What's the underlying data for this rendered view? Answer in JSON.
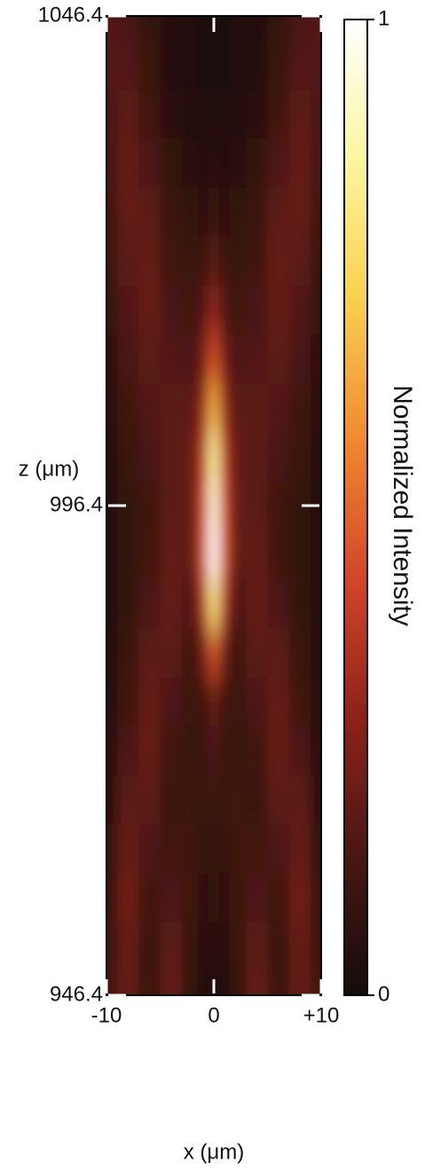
{
  "chart_data": {
    "type": "heatmap",
    "xlabel": "x (μm)",
    "ylabel": "z (μm)",
    "colorbar_label": "Normalized Intensity",
    "xlim": [
      -10,
      10
    ],
    "xticks": [
      {
        "value": -10,
        "label": "-10"
      },
      0,
      {
        "value": 10,
        "label": "+10"
      }
    ],
    "ylim": [
      946.4,
      1046.4
    ],
    "yticks": [
      946.4,
      996.4,
      1046.4
    ],
    "clim": [
      0,
      1
    ],
    "cticks": [
      0,
      1
    ],
    "colormap": [
      "#140c0a",
      "#4a1712",
      "#8e2219",
      "#d4462a",
      "#f08a30",
      "#f9d050",
      "#fbf6a0",
      "#ffffff"
    ],
    "x": [
      -10,
      -8,
      -6,
      -4,
      -2,
      -1,
      0,
      1,
      2,
      4,
      6,
      8,
      10
    ],
    "z": [
      946.4,
      951.4,
      956.4,
      961.4,
      966.4,
      971.4,
      976.4,
      981.4,
      986.4,
      991.4,
      996.4,
      1001.4,
      1006.4,
      1011.4,
      1016.4,
      1021.4,
      1026.4,
      1031.4,
      1036.4,
      1041.4,
      1046.4
    ],
    "values": [
      [
        0.12,
        0.2,
        0.1,
        0.2,
        0.08,
        0.05,
        0.05,
        0.05,
        0.08,
        0.2,
        0.1,
        0.2,
        0.12
      ],
      [
        0.1,
        0.2,
        0.1,
        0.18,
        0.1,
        0.06,
        0.06,
        0.06,
        0.1,
        0.18,
        0.1,
        0.2,
        0.1
      ],
      [
        0.08,
        0.22,
        0.12,
        0.15,
        0.12,
        0.07,
        0.08,
        0.07,
        0.12,
        0.15,
        0.12,
        0.22,
        0.08
      ],
      [
        0.08,
        0.2,
        0.15,
        0.12,
        0.12,
        0.08,
        0.1,
        0.08,
        0.12,
        0.12,
        0.15,
        0.2,
        0.08
      ],
      [
        0.07,
        0.18,
        0.18,
        0.1,
        0.12,
        0.09,
        0.12,
        0.09,
        0.12,
        0.1,
        0.18,
        0.18,
        0.07
      ],
      [
        0.06,
        0.15,
        0.2,
        0.12,
        0.1,
        0.1,
        0.15,
        0.1,
        0.1,
        0.12,
        0.2,
        0.15,
        0.06
      ],
      [
        0.05,
        0.12,
        0.2,
        0.15,
        0.1,
        0.12,
        0.2,
        0.12,
        0.1,
        0.15,
        0.2,
        0.12,
        0.05
      ],
      [
        0.05,
        0.1,
        0.18,
        0.18,
        0.12,
        0.2,
        0.45,
        0.2,
        0.12,
        0.18,
        0.18,
        0.1,
        0.05
      ],
      [
        0.05,
        0.08,
        0.15,
        0.2,
        0.15,
        0.35,
        0.8,
        0.35,
        0.15,
        0.2,
        0.15,
        0.08,
        0.05
      ],
      [
        0.05,
        0.08,
        0.12,
        0.2,
        0.18,
        0.45,
        1,
        0.45,
        0.18,
        0.2,
        0.12,
        0.08,
        0.05
      ],
      [
        0.05,
        0.08,
        0.12,
        0.18,
        0.2,
        0.42,
        0.95,
        0.42,
        0.2,
        0.18,
        0.12,
        0.08,
        0.05
      ],
      [
        0.05,
        0.1,
        0.14,
        0.18,
        0.2,
        0.38,
        0.85,
        0.38,
        0.2,
        0.18,
        0.14,
        0.1,
        0.05
      ],
      [
        0.06,
        0.12,
        0.16,
        0.18,
        0.18,
        0.3,
        0.65,
        0.3,
        0.18,
        0.18,
        0.16,
        0.12,
        0.06
      ],
      [
        0.07,
        0.14,
        0.18,
        0.16,
        0.15,
        0.22,
        0.45,
        0.22,
        0.15,
        0.16,
        0.18,
        0.14,
        0.07
      ],
      [
        0.08,
        0.16,
        0.2,
        0.14,
        0.12,
        0.15,
        0.3,
        0.15,
        0.12,
        0.14,
        0.2,
        0.16,
        0.08
      ],
      [
        0.1,
        0.18,
        0.2,
        0.12,
        0.1,
        0.1,
        0.18,
        0.1,
        0.1,
        0.12,
        0.2,
        0.18,
        0.1
      ],
      [
        0.12,
        0.2,
        0.18,
        0.1,
        0.08,
        0.07,
        0.1,
        0.07,
        0.08,
        0.1,
        0.18,
        0.2,
        0.12
      ],
      [
        0.14,
        0.2,
        0.15,
        0.08,
        0.06,
        0.05,
        0.06,
        0.05,
        0.06,
        0.08,
        0.15,
        0.2,
        0.14
      ],
      [
        0.15,
        0.18,
        0.12,
        0.06,
        0.05,
        0.04,
        0.04,
        0.04,
        0.05,
        0.06,
        0.12,
        0.18,
        0.15
      ],
      [
        0.16,
        0.16,
        0.1,
        0.05,
        0.04,
        0.03,
        0.03,
        0.03,
        0.04,
        0.05,
        0.1,
        0.16,
        0.16
      ],
      [
        0.17,
        0.14,
        0.08,
        0.05,
        0.04,
        0.03,
        0.03,
        0.03,
        0.04,
        0.05,
        0.08,
        0.14,
        0.17
      ]
    ]
  }
}
